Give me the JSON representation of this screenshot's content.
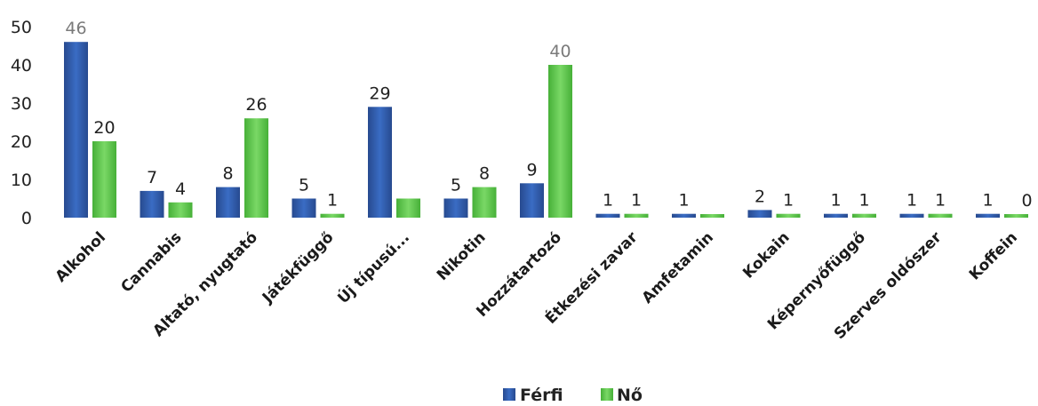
{
  "colors": {
    "ferfi": "#2f5aa8",
    "no": "#5dc84a"
  },
  "legend": {
    "items": [
      "Férfi",
      "Nő"
    ],
    "position": "bottom-center"
  },
  "chart_data": {
    "type": "bar",
    "title": "",
    "xlabel": "",
    "ylabel": "",
    "ylim": [
      0,
      50
    ],
    "yticks": [
      "0",
      "10",
      "20",
      "30",
      "40",
      "50"
    ],
    "grid": false,
    "categories": [
      "Alkohol",
      "Cannabis",
      "Altató, nyugtató",
      "Játékfüggő",
      "Új típusú...",
      "Nikotin",
      "Hozzátartozó",
      "Étkezési zavar",
      "Amfetamin",
      "Kokain",
      "Képernyőfüggő",
      "Szerves oldószer",
      "Koffein"
    ],
    "series": [
      {
        "name": "Férfi",
        "values": [
          46,
          7,
          8,
          5,
          29,
          5,
          9,
          1,
          1,
          2,
          1,
          1,
          1
        ],
        "labels": [
          "46",
          "7",
          "8",
          "5",
          "29",
          "5",
          "9",
          "1",
          "1",
          "2",
          "1",
          "1",
          "1"
        ]
      },
      {
        "name": "Nő",
        "values": [
          20,
          4,
          26,
          1,
          5,
          8,
          40,
          1,
          0,
          1,
          1,
          1,
          0
        ],
        "labels": [
          "20",
          "4",
          "26",
          "1",
          "",
          "8",
          "40",
          "1",
          "",
          "1",
          "1",
          "1",
          "0"
        ]
      }
    ]
  }
}
